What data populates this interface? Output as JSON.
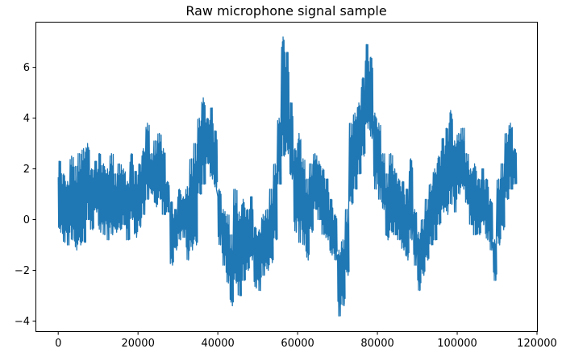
{
  "chart_data": {
    "type": "line",
    "title": "Raw microphone signal sample",
    "xlabel": "",
    "ylabel": "",
    "xlim": [
      -5700,
      120000
    ],
    "ylim": [
      -4.4,
      7.8
    ],
    "x_ticks": [
      0,
      20000,
      40000,
      60000,
      80000,
      100000,
      120000
    ],
    "x_tick_labels": [
      "0",
      "20000",
      "40000",
      "60000",
      "80000",
      "100000",
      "120000"
    ],
    "y_ticks": [
      -4,
      -2,
      0,
      2,
      4,
      6
    ],
    "y_tick_labels": [
      "−4",
      "−2",
      "0",
      "2",
      "4",
      "6"
    ],
    "grid": false,
    "series": [
      {
        "color": "#1f77b4",
        "x": [
          0,
          1000,
          2000,
          3000,
          4000,
          5000,
          6000,
          7000,
          8000,
          9000,
          10000,
          11000,
          12000,
          13000,
          14000,
          15000,
          16000,
          17000,
          18000,
          19000,
          20000,
          21000,
          22000,
          23000,
          24000,
          25000,
          26000,
          27000,
          28000,
          29000,
          30000,
          31000,
          32000,
          33000,
          34000,
          35000,
          36000,
          37000,
          38000,
          39000,
          40000,
          41000,
          42000,
          43000,
          44000,
          45000,
          46000,
          47000,
          48000,
          49000,
          50000,
          51000,
          52000,
          53000,
          54000,
          55000,
          56000,
          57000,
          58000,
          59000,
          60000,
          61000,
          62000,
          63000,
          64000,
          65000,
          66000,
          67000,
          68000,
          69000,
          70000,
          71000,
          72000,
          73000,
          74000,
          75000,
          76000,
          77000,
          78000,
          79000,
          80000,
          81000,
          82000,
          83000,
          84000,
          85000,
          86000,
          87000,
          88000,
          89000,
          90000,
          91000,
          92000,
          93000,
          94000,
          95000,
          96000,
          97000,
          98000,
          99000,
          100000,
          101000,
          102000,
          103000,
          104000,
          105000,
          106000,
          107000,
          108000,
          109000,
          110000,
          111000,
          112000,
          113000,
          114000
        ],
        "ymin": [
          -0.5,
          -0.9,
          -1.0,
          -0.8,
          -1.2,
          -1.0,
          -0.9,
          0.0,
          -0.4,
          0.3,
          -0.5,
          -0.6,
          -0.8,
          -0.6,
          -0.5,
          -0.4,
          -0.2,
          -0.8,
          0.0,
          -0.7,
          -0.3,
          0.2,
          0.8,
          1.0,
          0.5,
          0.8,
          0.2,
          0.3,
          -1.8,
          -1.2,
          -0.8,
          -0.7,
          -1.6,
          -1.2,
          -1.0,
          1.0,
          1.4,
          2.2,
          1.6,
          1.2,
          -1.0,
          -1.8,
          -2.5,
          -3.4,
          -2.5,
          -3.0,
          -2.4,
          -2.0,
          -1.6,
          -2.7,
          -2.8,
          -2.2,
          -2.0,
          -1.7,
          -0.8,
          1.4,
          2.5,
          2.6,
          1.6,
          -0.5,
          -0.9,
          -1.0,
          -1.6,
          -0.5,
          0.4,
          0.0,
          -0.6,
          -0.8,
          -1.4,
          -1.6,
          -3.8,
          -3.4,
          -2.2,
          0.6,
          1.2,
          1.8,
          2.5,
          3.6,
          3.2,
          1.2,
          0.8,
          0.4,
          -0.8,
          -0.5,
          -0.6,
          -0.8,
          -1.2,
          -1.6,
          -0.8,
          -1.8,
          -2.8,
          -2.2,
          -1.6,
          -1.0,
          -0.8,
          -0.2,
          0.3,
          0.2,
          0.6,
          0.3,
          1.0,
          1.2,
          0.6,
          -0.2,
          -0.6,
          -0.6,
          -0.2,
          -0.8,
          -1.2,
          -2.4,
          -1.0,
          -0.4,
          0.8,
          1.2,
          1.4
        ],
        "ymax": [
          2.3,
          1.8,
          1.5,
          2.5,
          2.1,
          2.6,
          2.8,
          3.0,
          2.0,
          2.3,
          2.6,
          2.2,
          2.0,
          2.6,
          1.8,
          2.2,
          2.0,
          1.5,
          2.6,
          1.9,
          2.2,
          2.8,
          3.8,
          2.6,
          3.1,
          3.4,
          2.8,
          1.5,
          0.7,
          0.4,
          1.2,
          0.9,
          1.3,
          2.4,
          3.0,
          4.0,
          4.8,
          4.0,
          4.4,
          3.5,
          1.2,
          0.4,
          0.2,
          -0.6,
          1.2,
          0.3,
          0.8,
          0.4,
          0.9,
          -0.3,
          -0.4,
          0.2,
          0.4,
          1.2,
          2.2,
          4.0,
          7.2,
          6.6,
          4.6,
          2.8,
          3.4,
          2.4,
          1.6,
          2.2,
          2.6,
          2.3,
          2.0,
          1.6,
          0.8,
          0.2,
          -1.2,
          -0.8,
          0.4,
          3.8,
          4.2,
          4.6,
          5.6,
          6.9,
          6.4,
          4.2,
          3.8,
          2.6,
          1.8,
          2.6,
          2.0,
          1.6,
          1.5,
          1.2,
          2.4,
          0.4,
          -0.5,
          0.0,
          0.8,
          1.4,
          2.0,
          2.5,
          3.2,
          3.6,
          4.3,
          3.1,
          3.4,
          3.6,
          2.6,
          2.0,
          2.2,
          1.6,
          2.0,
          1.6,
          0.8,
          -0.8,
          1.6,
          2.2,
          3.4,
          3.8,
          2.8
        ]
      }
    ]
  }
}
